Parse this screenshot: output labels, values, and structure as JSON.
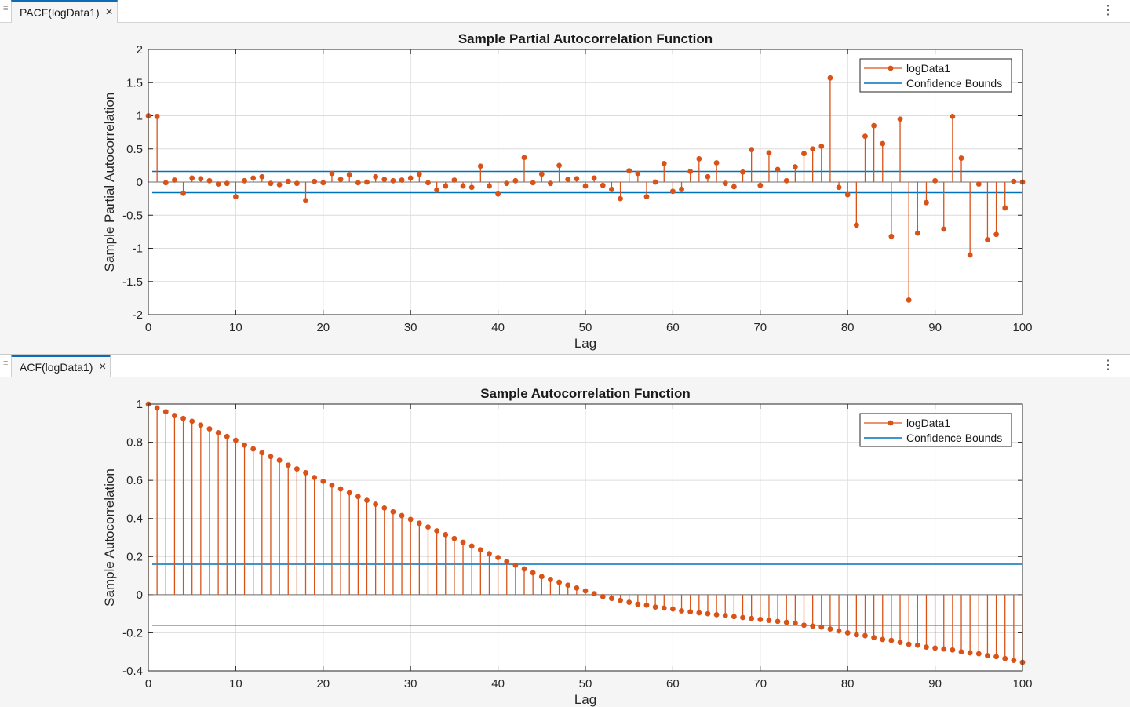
{
  "windows": [
    {
      "tab_label": "PACF(logData1)",
      "chart_data": {
        "type": "stem",
        "title": "Sample Partial Autocorrelation Function",
        "xlabel": "Lag",
        "ylabel": "Sample Partial Autocorrelation",
        "xlim": [
          0,
          100
        ],
        "ylim": [
          -2,
          2
        ],
        "x_ticks": [
          "0",
          "10",
          "20",
          "30",
          "40",
          "50",
          "60",
          "70",
          "80",
          "90",
          "100"
        ],
        "y_ticks": [
          "2",
          "1.5",
          "1",
          "0.5",
          "0",
          "-0.5",
          "-1",
          "-1.5",
          "-2"
        ],
        "y_tick_values": [
          2,
          1.5,
          1,
          0.5,
          0,
          -0.5,
          -1,
          -1.5,
          -2
        ],
        "grid": true,
        "legend_position": "top-right",
        "colors": {
          "stem": "#d95319",
          "bounds": "#0072bd",
          "axis": "#262626",
          "grid": "#dcdcdc"
        },
        "series": [
          {
            "name": "logData1",
            "x": [
              0,
              1,
              2,
              3,
              4,
              5,
              6,
              7,
              8,
              9,
              10,
              11,
              12,
              13,
              14,
              15,
              16,
              17,
              18,
              19,
              20,
              21,
              22,
              23,
              24,
              25,
              26,
              27,
              28,
              29,
              30,
              31,
              32,
              33,
              34,
              35,
              36,
              37,
              38,
              39,
              40,
              41,
              42,
              43,
              44,
              45,
              46,
              47,
              48,
              49,
              50,
              51,
              52,
              53,
              54,
              55,
              56,
              57,
              58,
              59,
              60,
              61,
              62,
              63,
              64,
              65,
              66,
              67,
              68,
              69,
              70,
              71,
              72,
              73,
              74,
              75,
              76,
              77,
              78,
              79,
              80,
              81,
              82,
              83,
              84,
              85,
              86,
              87,
              88,
              89,
              90,
              91,
              92,
              93,
              94,
              95,
              96,
              97,
              98,
              99,
              100
            ],
            "values": [
              1,
              0.99,
              -0.01,
              0.03,
              -0.17,
              0.06,
              0.05,
              0.02,
              -0.03,
              -0.02,
              -0.22,
              0.02,
              0.06,
              0.08,
              -0.02,
              -0.04,
              0.01,
              -0.02,
              -0.28,
              0.01,
              -0.01,
              0.13,
              0.04,
              0.11,
              -0.01,
              0,
              0.08,
              0.04,
              0.02,
              0.03,
              0.06,
              0.12,
              -0.01,
              -0.12,
              -0.06,
              0.03,
              -0.06,
              -0.08,
              0.24,
              -0.06,
              -0.18,
              -0.02,
              0.02,
              0.37,
              -0.01,
              0.12,
              -0.02,
              0.25,
              0.04,
              0.05,
              -0.06,
              0.06,
              -0.05,
              -0.11,
              -0.25,
              0.17,
              0.13,
              -0.22,
              0,
              0.28,
              -0.14,
              -0.11,
              0.16,
              0.35,
              0.08,
              0.29,
              -0.02,
              -0.07,
              0.15,
              0.49,
              -0.05,
              0.44,
              0.19,
              0.02,
              0.23,
              0.43,
              0.5,
              0.54,
              1.57,
              -0.08,
              -0.19,
              -0.65,
              0.69,
              0.85,
              0.58,
              -0.82,
              0.95,
              -1.78,
              -0.77,
              -0.31,
              0.02,
              -0.71,
              0.99,
              0.36,
              -1.1,
              -0.03,
              -0.87,
              -0.79,
              -0.39,
              0.01,
              0
            ]
          },
          {
            "name": "Confidence Bounds",
            "values": [
              0.16,
              -0.16
            ]
          }
        ]
      }
    },
    {
      "tab_label": "ACF(logData1)",
      "chart_data": {
        "type": "stem",
        "title": "Sample Autocorrelation Function",
        "xlabel": "Lag",
        "ylabel": "Sample Autocorrelation",
        "xlim": [
          0,
          100
        ],
        "ylim": [
          -0.4,
          1
        ],
        "x_ticks": [
          "0",
          "10",
          "20",
          "30",
          "40",
          "50",
          "60",
          "70",
          "80",
          "90",
          "100"
        ],
        "y_ticks": [
          "1",
          "0.8",
          "0.6",
          "0.4",
          "0.2",
          "0",
          "-0.2",
          "-0.4"
        ],
        "y_tick_values": [
          1,
          0.8,
          0.6,
          0.4,
          0.2,
          0,
          -0.2,
          -0.4
        ],
        "grid": true,
        "legend_position": "top-right",
        "colors": {
          "stem": "#d95319",
          "bounds": "#0072bd",
          "axis": "#262626",
          "grid": "#dcdcdc"
        },
        "series": [
          {
            "name": "logData1",
            "x": [
              0,
              1,
              2,
              3,
              4,
              5,
              6,
              7,
              8,
              9,
              10,
              11,
              12,
              13,
              14,
              15,
              16,
              17,
              18,
              19,
              20,
              21,
              22,
              23,
              24,
              25,
              26,
              27,
              28,
              29,
              30,
              31,
              32,
              33,
              34,
              35,
              36,
              37,
              38,
              39,
              40,
              41,
              42,
              43,
              44,
              45,
              46,
              47,
              48,
              49,
              50,
              51,
              52,
              53,
              54,
              55,
              56,
              57,
              58,
              59,
              60,
              61,
              62,
              63,
              64,
              65,
              66,
              67,
              68,
              69,
              70,
              71,
              72,
              73,
              74,
              75,
              76,
              77,
              78,
              79,
              80,
              81,
              82,
              83,
              84,
              85,
              86,
              87,
              88,
              89,
              90,
              91,
              92,
              93,
              94,
              95,
              96,
              97,
              98,
              99,
              100
            ],
            "values": [
              1,
              0.98,
              0.96,
              0.94,
              0.925,
              0.91,
              0.89,
              0.87,
              0.85,
              0.83,
              0.81,
              0.785,
              0.765,
              0.745,
              0.725,
              0.705,
              0.68,
              0.66,
              0.64,
              0.615,
              0.595,
              0.575,
              0.555,
              0.535,
              0.515,
              0.495,
              0.475,
              0.455,
              0.435,
              0.415,
              0.395,
              0.375,
              0.355,
              0.335,
              0.315,
              0.295,
              0.275,
              0.255,
              0.235,
              0.215,
              0.195,
              0.175,
              0.155,
              0.135,
              0.115,
              0.095,
              0.08,
              0.065,
              0.05,
              0.035,
              0.02,
              0.005,
              -0.01,
              -0.02,
              -0.03,
              -0.04,
              -0.05,
              -0.055,
              -0.065,
              -0.07,
              -0.075,
              -0.085,
              -0.09,
              -0.095,
              -0.1,
              -0.105,
              -0.11,
              -0.115,
              -0.12,
              -0.125,
              -0.13,
              -0.135,
              -0.14,
              -0.145,
              -0.15,
              -0.16,
              -0.165,
              -0.17,
              -0.18,
              -0.19,
              -0.2,
              -0.21,
              -0.215,
              -0.225,
              -0.235,
              -0.24,
              -0.25,
              -0.26,
              -0.265,
              -0.275,
              -0.28,
              -0.285,
              -0.29,
              -0.3,
              -0.305,
              -0.31,
              -0.32,
              -0.325,
              -0.335,
              -0.345,
              -0.355
            ]
          },
          {
            "name": "Confidence Bounds",
            "values": [
              0.16,
              -0.16
            ]
          }
        ]
      }
    }
  ]
}
